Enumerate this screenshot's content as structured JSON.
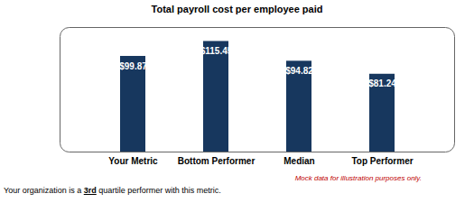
{
  "chart_data": {
    "type": "bar",
    "title": "Total payroll cost per employee paid",
    "categories": [
      "Your Metric",
      "Bottom Performer",
      "Median",
      "Top Performer"
    ],
    "values": [
      99.87,
      115.45,
      94.82,
      81.24
    ],
    "value_labels": [
      "$99.87",
      "$115.45",
      "$94.82",
      "$81.24"
    ],
    "color": "#17375e",
    "ylim": [
      0,
      130
    ],
    "data_labels": true,
    "tick_labels": "x",
    "grid": false,
    "note": "Mock data for illustration purposes only.",
    "caption": "Your organization is a 3rd quartile performer with this metric.",
    "caption_emphasis": "3rd"
  }
}
